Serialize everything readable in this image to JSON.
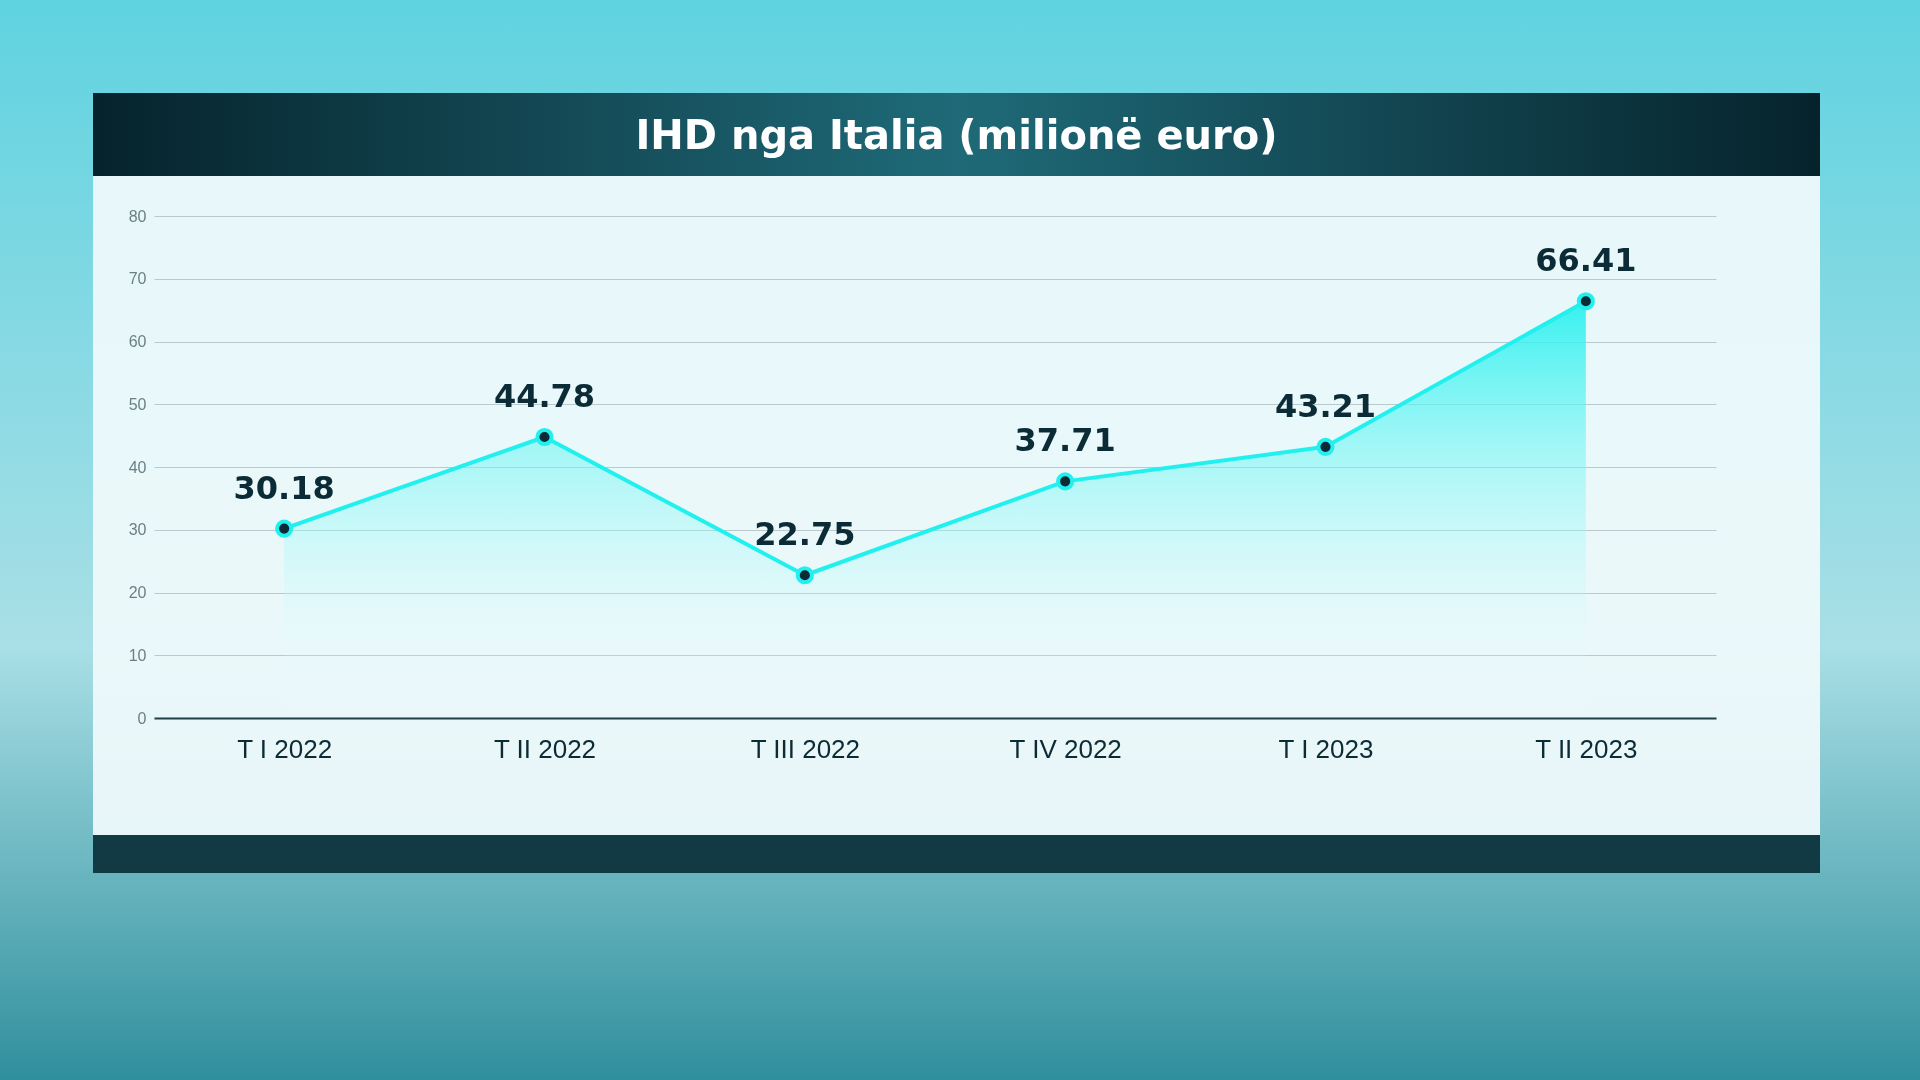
{
  "chart_data": {
    "type": "area",
    "title": "IHD nga Italia (milionë euro)",
    "categories": [
      "T I 2022",
      "T II 2022",
      "T III 2022",
      "T IV 2022",
      "T I 2023",
      "T II 2023"
    ],
    "series": [
      {
        "color": "#22f0ee",
        "values": [
          30.18,
          44.78,
          22.75,
          37.71,
          43.21,
          66.41
        ]
      }
    ],
    "ylim": [
      0,
      80
    ],
    "yticks": [
      0,
      10,
      20,
      30,
      40,
      50,
      60,
      70,
      80
    ],
    "grid": "y",
    "marker": "circle",
    "line_style": "solid",
    "data_labels": true
  }
}
